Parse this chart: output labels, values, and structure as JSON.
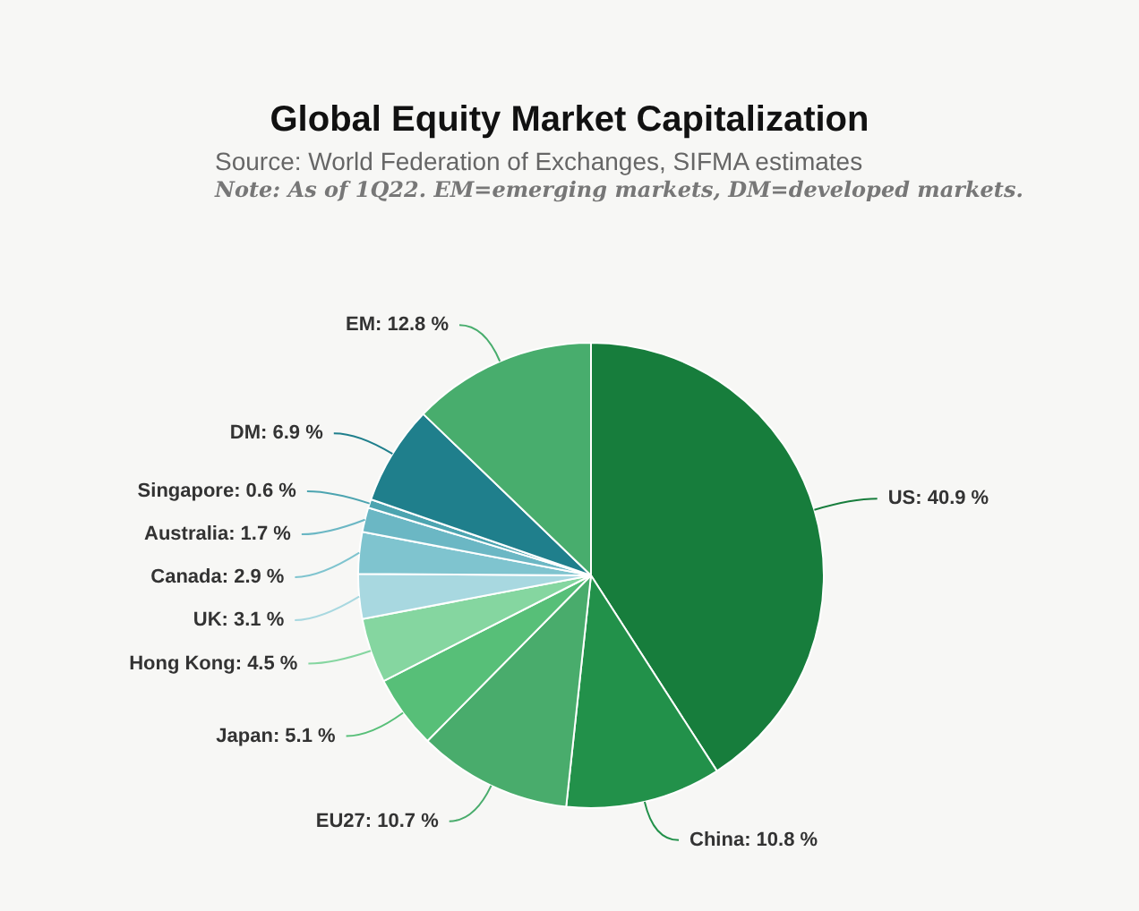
{
  "chart_data": {
    "type": "pie",
    "title": "Global Equity Market Capitalization",
    "annotations": [
      "Source: World Federation of Exchanges, SIFMA estimates",
      "Note: As of 1Q22. EM=emerging markets, DM=developed markets."
    ],
    "categories": [
      "US",
      "China",
      "EU27",
      "Japan",
      "Hong Kong",
      "UK",
      "Canada",
      "Australia",
      "Singapore",
      "DM",
      "EM"
    ],
    "values": [
      40.9,
      10.8,
      10.7,
      5.1,
      4.5,
      3.1,
      2.9,
      1.7,
      0.6,
      6.9,
      12.8
    ],
    "value_labels": [
      "40.9 %",
      "10.8 %",
      "10.7 %",
      "5.1 %",
      "4.5 %",
      "3.1 %",
      "2.9 %",
      "1.7 %",
      "0.6 %",
      "6.9 %",
      "12.8 %"
    ],
    "colors": [
      "#177d3c",
      "#22914a",
      "#49ac6c",
      "#57bf78",
      "#85d6a0",
      "#a8d8e0",
      "#7fc4cf",
      "#6bb7c4",
      "#4ca4b0",
      "#1f7f8c",
      "#48ad6d"
    ],
    "legend": false
  }
}
